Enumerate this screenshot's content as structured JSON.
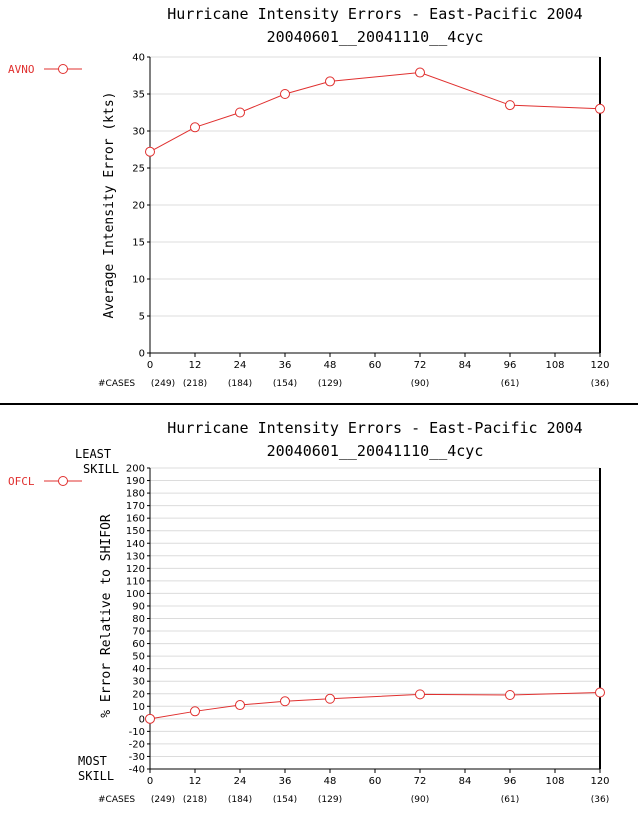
{
  "chart_data": [
    {
      "type": "line",
      "title": "Hurricane Intensity Errors - East-Pacific 2004",
      "subtitle": "20040601__20041110__4cyc",
      "ylabel": "Average Intensity Error (kts)",
      "xlabel": "",
      "xlim": [
        0,
        120
      ],
      "ylim": [
        0,
        40
      ],
      "x_ticks": [
        0,
        12,
        24,
        36,
        48,
        60,
        72,
        84,
        96,
        108,
        120
      ],
      "y_ticks": [
        0,
        5,
        10,
        15,
        20,
        25,
        30,
        35,
        40
      ],
      "grid": true,
      "cases_label": "#CASES",
      "cases": [
        {
          "x": 0,
          "label": "(249)"
        },
        {
          "x": 12,
          "label": "(218)"
        },
        {
          "x": 24,
          "label": "(184)"
        },
        {
          "x": 36,
          "label": "(154)"
        },
        {
          "x": 48,
          "label": "(129)"
        },
        {
          "x": 72,
          "label": "(90)"
        },
        {
          "x": 96,
          "label": "(61)"
        },
        {
          "x": 120,
          "label": "(36)"
        }
      ],
      "series": [
        {
          "name": "AVNO",
          "color": "#e0302f",
          "x": [
            0,
            12,
            24,
            36,
            48,
            72,
            96,
            120
          ],
          "values": [
            27.2,
            30.5,
            32.5,
            35.0,
            36.7,
            37.9,
            33.5,
            33.0
          ]
        }
      ]
    },
    {
      "type": "line",
      "title": "Hurricane Intensity Errors - East-Pacific 2004",
      "subtitle": "20040601__20041110__4cyc",
      "ylabel": "% Error Relative to SHIFOR",
      "xlabel": "",
      "xlim": [
        0,
        120
      ],
      "ylim": [
        -40,
        200
      ],
      "x_ticks": [
        0,
        12,
        24,
        36,
        48,
        60,
        72,
        84,
        96,
        108,
        120
      ],
      "y_ticks": [
        -40,
        -30,
        -20,
        -10,
        0,
        10,
        20,
        30,
        40,
        50,
        60,
        70,
        80,
        90,
        100,
        110,
        120,
        130,
        140,
        150,
        160,
        170,
        180,
        190,
        200
      ],
      "grid": true,
      "top_note": [
        "LEAST",
        "SKILL"
      ],
      "bottom_note": [
        "MOST",
        "SKILL"
      ],
      "cases_label": "#CASES",
      "cases": [
        {
          "x": 0,
          "label": "(249)"
        },
        {
          "x": 12,
          "label": "(218)"
        },
        {
          "x": 24,
          "label": "(184)"
        },
        {
          "x": 36,
          "label": "(154)"
        },
        {
          "x": 48,
          "label": "(129)"
        },
        {
          "x": 72,
          "label": "(90)"
        },
        {
          "x": 96,
          "label": "(61)"
        },
        {
          "x": 120,
          "label": "(36)"
        }
      ],
      "series": [
        {
          "name": "OFCL",
          "color": "#e0302f",
          "x": [
            0,
            12,
            24,
            36,
            48,
            72,
            96,
            120
          ],
          "values": [
            0,
            6,
            11,
            14,
            16,
            19.5,
            19,
            21
          ]
        }
      ]
    }
  ]
}
